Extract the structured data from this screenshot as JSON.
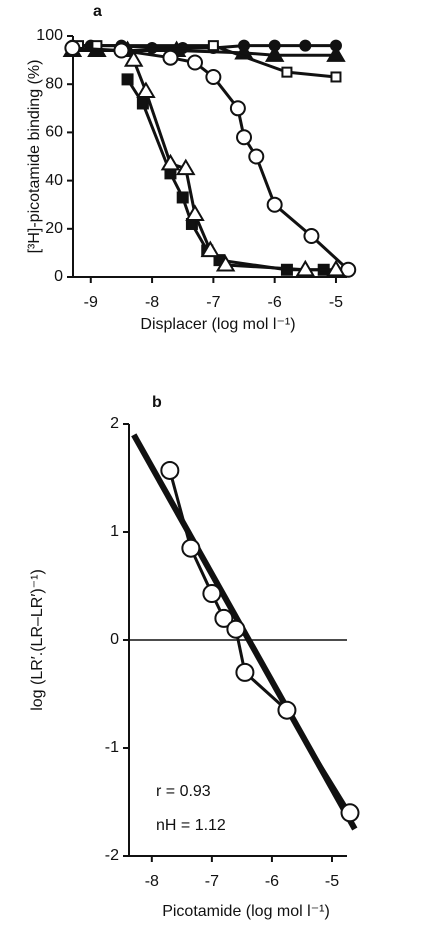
{
  "chart_data": [
    {
      "type": "line",
      "panel_label": "a",
      "x_label": "Displacer (log mol l⁻¹)",
      "y_label": "[³H]-picotamide binding (%)",
      "xlim": [
        -9.29,
        -4.82
      ],
      "ylim": [
        0,
        100
      ],
      "xticks": [
        -9,
        -8,
        -7,
        -6,
        -5
      ],
      "yticks": [
        0,
        20,
        40,
        60,
        80,
        100
      ],
      "series": [
        {
          "color": "#111",
          "marker": "circle-filled",
          "x": [
            -9.3,
            -9,
            -8.5,
            -8,
            -7.5,
            -7,
            -6.5,
            -6,
            -5.5,
            -5
          ],
          "values": [
            96,
            96,
            96,
            95,
            95,
            95,
            96,
            96,
            96,
            96
          ]
        },
        {
          "color": "#111",
          "marker": "triangle-filled",
          "x": [
            -9.3,
            -8.9,
            -8.4,
            -7.6,
            -6.5,
            -6,
            -5
          ],
          "values": [
            94,
            94,
            94,
            94,
            93,
            92,
            92
          ]
        },
        {
          "color": "#111",
          "marker": "square-open",
          "x": [
            -9.2,
            -8.9,
            -7,
            -5.8,
            -5
          ],
          "values": [
            96,
            96,
            96,
            85,
            83
          ]
        },
        {
          "color": "#111",
          "marker": "circle-open",
          "x": [
            -9.3,
            -8.5,
            -7.7,
            -7.3,
            -7,
            -6.6,
            -6.5,
            -6.3,
            -6,
            -5.4,
            -4.8
          ],
          "values": [
            95,
            94,
            91,
            89,
            83,
            70,
            58,
            50,
            30,
            17,
            3
          ]
        },
        {
          "color": "#111",
          "marker": "square-filled",
          "x": [
            -8.4,
            -8.15,
            -7.7,
            -7.5,
            -7.35,
            -7.1,
            -6.9,
            -5.8,
            -5.2
          ],
          "values": [
            82,
            72,
            43,
            33,
            22,
            11,
            7,
            3,
            3
          ]
        },
        {
          "color": "#111",
          "marker": "triangle-open",
          "x": [
            -8.3,
            -8.1,
            -7.7,
            -7.45,
            -7.3,
            -7.05,
            -6.8,
            -5.5,
            -5
          ],
          "values": [
            90,
            77,
            47,
            45,
            26,
            11,
            5,
            3,
            3
          ]
        }
      ]
    },
    {
      "type": "line",
      "panel_label": "b",
      "x_label": "Picotamide (log mol l⁻¹)",
      "y_label": "log (LR′.(LR–LR′)⁻¹)",
      "xlim": [
        -8.38,
        -4.75
      ],
      "ylim": [
        -2,
        2
      ],
      "xticks": [
        -8,
        -7,
        -6,
        -5
      ],
      "yticks": [
        -2,
        -1,
        0,
        1,
        2
      ],
      "reference_line": 0,
      "annotations": [
        "r = 0.93",
        "nH = 1.12"
      ],
      "series": [
        {
          "color": "#111",
          "line_width": 6,
          "x": [
            -8.3,
            -4.62
          ],
          "values": [
            1.9,
            -1.75
          ]
        },
        {
          "color": "#111",
          "marker": "circle-open-large",
          "x": [
            -7.7,
            -7.35,
            -7.0,
            -6.8,
            -6.6,
            -6.45,
            -5.75,
            -4.7
          ],
          "values": [
            1.57,
            0.85,
            0.43,
            0.2,
            0.1,
            -0.3,
            -0.65,
            -1.6
          ]
        }
      ]
    }
  ]
}
